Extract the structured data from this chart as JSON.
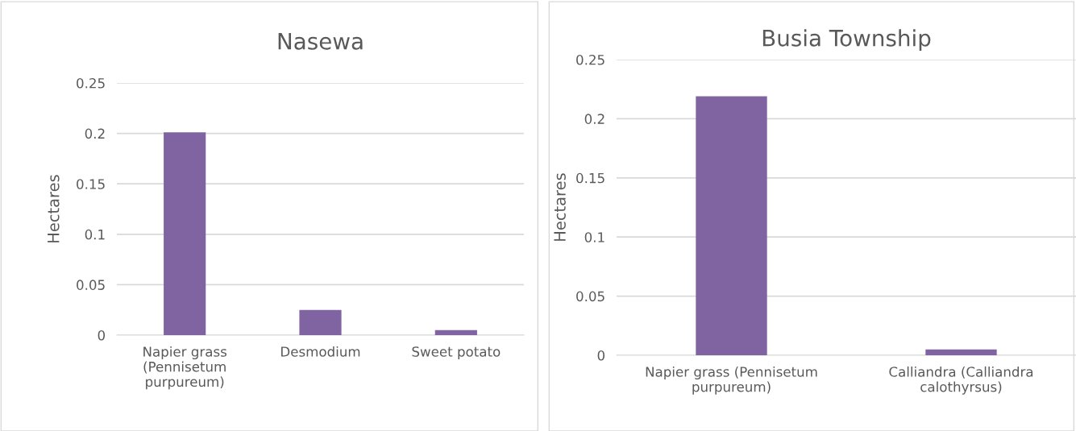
{
  "chart_data": [
    {
      "type": "bar",
      "title": "Nasewa",
      "ylabel": "Hectares",
      "categories": [
        "Napier grass\n(Pennisetum\npurpureum)",
        "Desmodium",
        "Sweet potato"
      ],
      "series": [
        {
          "color": "#8064a2",
          "values": [
            0.201,
            0.025,
            0.005
          ]
        }
      ],
      "ylim": [
        0,
        0.25
      ],
      "yticks": [
        0,
        0.05,
        0.1,
        0.15,
        0.2,
        0.25
      ],
      "grid": "y"
    },
    {
      "type": "bar",
      "title": "Busia Township",
      "ylabel": "Hectares",
      "categories": [
        "Napier grass (Pennisetum\npurpureum)",
        "Calliandra (Calliandra\ncalothyrsus)"
      ],
      "series": [
        {
          "color": "#8064a2",
          "values": [
            0.219,
            0.005
          ]
        }
      ],
      "ylim": [
        0,
        0.25
      ],
      "yticks": [
        0,
        0.05,
        0.1,
        0.15,
        0.2,
        0.25
      ],
      "grid": "y"
    }
  ]
}
